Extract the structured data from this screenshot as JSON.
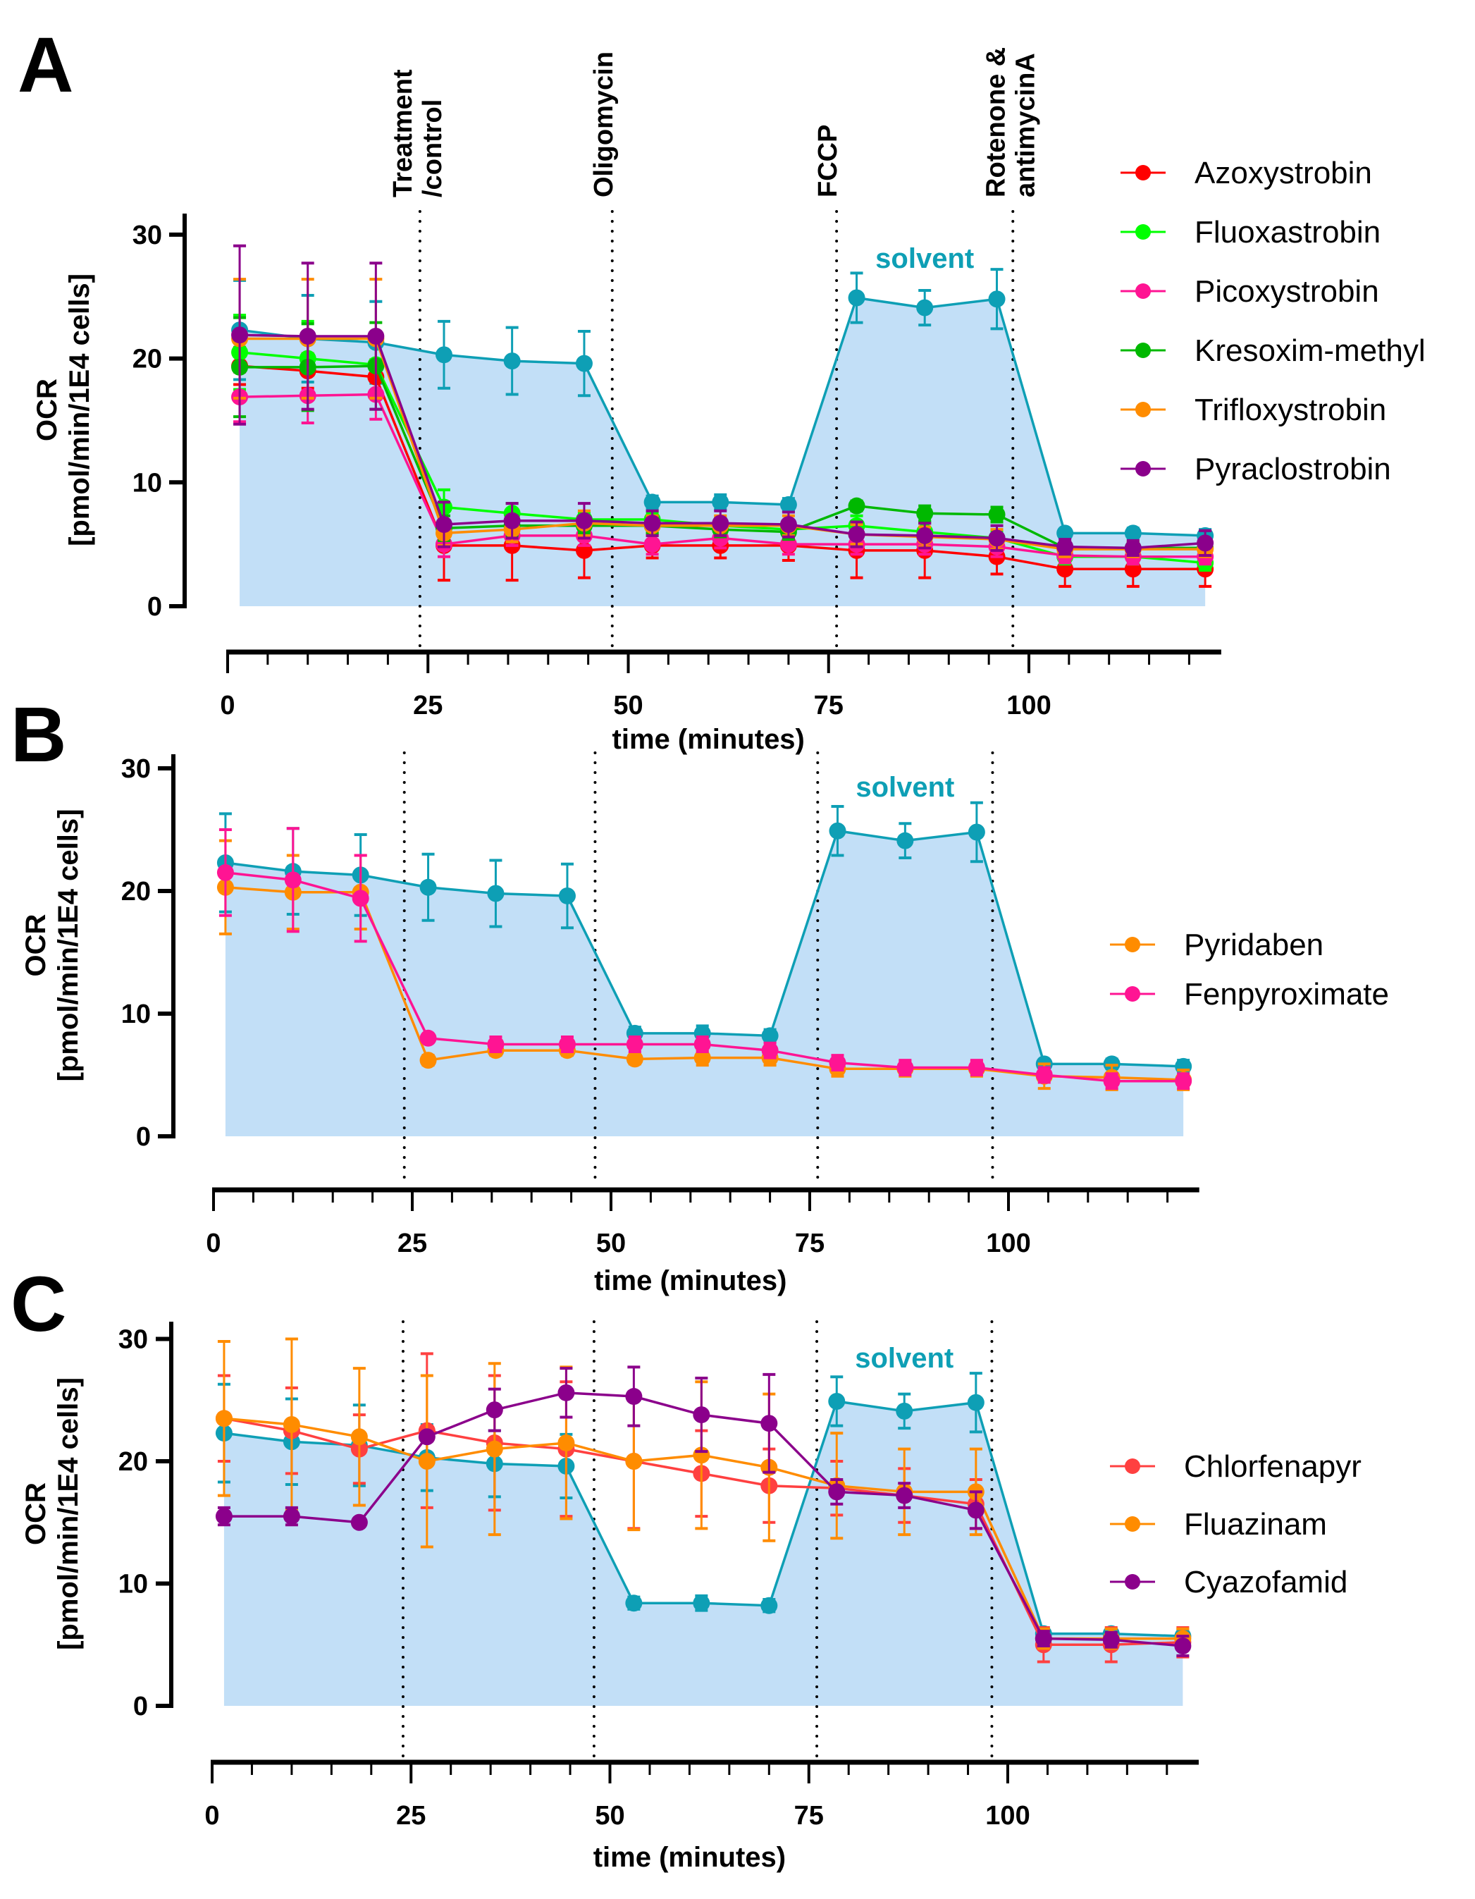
{
  "figure": {
    "ylabel_line1": "OCR",
    "ylabel_line2": "[pmol/min/1E4 cells]",
    "xlabel": "time (minutes)",
    "solvent_label": "solvent",
    "injections": [
      {
        "label_line1": "Treatment",
        "label_line2": "/control",
        "time": 24
      },
      {
        "label_line1": "Oligomycin",
        "label_line2": "",
        "time": 48
      },
      {
        "label_line1": "FCCP",
        "label_line2": "",
        "time": 76
      },
      {
        "label_line1": "Rotenone &",
        "label_line2": "antimycinA",
        "time": 98
      }
    ],
    "colors": {
      "solvent_line": "#0e9fb5",
      "solvent_fill": "#c2dff7",
      "axis": "#000000"
    }
  },
  "chart_data": [
    {
      "panel": "A",
      "type": "line",
      "xlabel": "time (minutes)",
      "ylabel": "OCR [pmol/min/1E4 cells]",
      "xlim": [
        0,
        124
      ],
      "ylim": [
        0,
        32
      ],
      "x_ticks": [
        0,
        25,
        50,
        75,
        100
      ],
      "y_ticks": [
        0,
        10,
        20,
        30
      ],
      "x": [
        1.5,
        10,
        18.5,
        27,
        35.5,
        44.5,
        53,
        61.5,
        70,
        78.5,
        87,
        96,
        104.5,
        113,
        122
      ],
      "legend_position": "right",
      "show_injection_labels": true,
      "solvent": {
        "name": "solvent",
        "color": "#0e9fb5",
        "values": [
          22.3,
          21.6,
          21.3,
          20.3,
          19.8,
          19.6,
          8.4,
          8.4,
          8.2,
          24.9,
          24.1,
          24.8,
          5.9,
          5.9,
          5.7
        ],
        "err": [
          4.0,
          3.5,
          3.3,
          2.7,
          2.7,
          2.6,
          0.5,
          0.6,
          0.5,
          2.0,
          1.4,
          2.4,
          0.3,
          0.4,
          0.5
        ]
      },
      "series": [
        {
          "name": "Azoxystrobin",
          "color": "#ff0000",
          "values": [
            19.4,
            19.0,
            18.5,
            4.9,
            4.9,
            4.5,
            4.9,
            4.9,
            4.9,
            4.5,
            4.5,
            4.0,
            3.0,
            3.0,
            3.0
          ],
          "err": [
            1.5,
            1.4,
            1.4,
            2.8,
            2.8,
            2.2,
            1.0,
            1.0,
            1.2,
            2.2,
            2.2,
            1.4,
            1.4,
            1.4,
            1.4
          ]
        },
        {
          "name": "Fluoxastrobin",
          "color": "#00ff00",
          "values": [
            20.5,
            20.0,
            19.5,
            8.0,
            7.5,
            7.0,
            7.0,
            6.5,
            6.2,
            6.5,
            6.0,
            5.5,
            4.0,
            4.0,
            3.5
          ],
          "err": [
            3.0,
            3.0,
            2.5,
            1.4,
            0.8,
            0.6,
            0.6,
            0.6,
            0.6,
            0.8,
            0.8,
            0.6,
            0.6,
            0.6,
            0.6
          ]
        },
        {
          "name": "Picoxystrobin",
          "color": "#ff1493",
          "values": [
            16.9,
            17.0,
            17.1,
            5.0,
            5.7,
            5.7,
            5.0,
            5.5,
            5.0,
            5.0,
            5.0,
            4.8,
            4.1,
            4.0,
            4.0
          ],
          "err": [
            2.0,
            2.2,
            2.0,
            1.0,
            0.8,
            0.8,
            0.8,
            0.8,
            0.8,
            0.8,
            0.8,
            0.8,
            0.6,
            0.6,
            0.6
          ]
        },
        {
          "name": "Kresoxim-methyl",
          "color": "#00b800",
          "values": [
            19.3,
            19.3,
            19.4,
            6.3,
            6.5,
            6.5,
            6.5,
            6.2,
            6.0,
            8.1,
            7.5,
            7.4,
            4.7,
            4.7,
            4.7
          ],
          "err": [
            4.0,
            3.5,
            3.5,
            1.0,
            0.8,
            0.6,
            0.6,
            0.6,
            0.6,
            0.4,
            0.6,
            0.6,
            0.4,
            0.4,
            0.4
          ]
        },
        {
          "name": "Trifloxystrobin",
          "color": "#ff8c00",
          "values": [
            21.6,
            21.6,
            21.6,
            5.9,
            6.2,
            6.7,
            6.5,
            6.5,
            6.5,
            5.8,
            5.6,
            5.4,
            4.6,
            4.6,
            4.6
          ],
          "err": [
            4.8,
            4.8,
            4.8,
            1.0,
            1.0,
            1.0,
            0.8,
            0.8,
            0.8,
            0.8,
            0.8,
            0.8,
            0.6,
            0.6,
            0.6
          ]
        },
        {
          "name": "Pyraclostrobin",
          "color": "#8b008b",
          "values": [
            21.9,
            21.8,
            21.8,
            6.6,
            6.9,
            6.9,
            6.7,
            6.7,
            6.6,
            5.8,
            5.7,
            5.5,
            4.8,
            4.7,
            5.1
          ],
          "err": [
            7.2,
            5.9,
            5.9,
            1.8,
            1.4,
            1.4,
            1.0,
            1.0,
            1.0,
            1.0,
            1.0,
            1.0,
            0.6,
            0.6,
            1.0
          ]
        }
      ]
    },
    {
      "panel": "B",
      "type": "line",
      "xlabel": "time (minutes)",
      "ylabel": "OCR [pmol/min/1E4 cells]",
      "xlim": [
        0,
        124
      ],
      "ylim": [
        0,
        32
      ],
      "x_ticks": [
        0,
        25,
        50,
        75,
        100
      ],
      "y_ticks": [
        0,
        10,
        20,
        30
      ],
      "x": [
        1.5,
        10,
        18.5,
        27,
        35.5,
        44.5,
        53,
        61.5,
        70,
        78.5,
        87,
        96,
        104.5,
        113,
        122
      ],
      "legend_position": "right",
      "show_injection_labels": false,
      "solvent": {
        "name": "solvent",
        "color": "#0e9fb5",
        "values": [
          22.3,
          21.6,
          21.3,
          20.3,
          19.8,
          19.6,
          8.4,
          8.4,
          8.2,
          24.9,
          24.1,
          24.8,
          5.9,
          5.9,
          5.7
        ],
        "err": [
          4.0,
          3.5,
          3.3,
          2.7,
          2.7,
          2.6,
          0.5,
          0.6,
          0.5,
          2.0,
          1.4,
          2.4,
          0.3,
          0.4,
          0.5
        ]
      },
      "series": [
        {
          "name": "Pyridaben",
          "color": "#ff8c00",
          "values": [
            20.3,
            19.9,
            19.9,
            6.2,
            7.0,
            7.0,
            6.3,
            6.4,
            6.4,
            5.5,
            5.5,
            5.5,
            4.9,
            4.8,
            4.6
          ],
          "err": [
            3.8,
            3.0,
            3.0,
            0.4,
            0.4,
            0.4,
            0.4,
            0.6,
            0.6,
            0.6,
            0.6,
            0.6,
            1.0,
            1.0,
            0.8
          ]
        },
        {
          "name": "Fenpyroximate",
          "color": "#ff1493",
          "values": [
            21.5,
            20.9,
            19.4,
            8.0,
            7.5,
            7.5,
            7.5,
            7.5,
            7.0,
            6.0,
            5.6,
            5.6,
            5.0,
            4.5,
            4.5
          ],
          "err": [
            3.5,
            4.2,
            3.5,
            0.3,
            0.6,
            0.6,
            0.6,
            0.6,
            0.6,
            0.6,
            0.6,
            0.6,
            0.6,
            0.6,
            0.6
          ]
        }
      ]
    },
    {
      "panel": "C",
      "type": "line",
      "xlabel": "time (minutes)",
      "ylabel": "OCR [pmol/min/1E4 cells]",
      "xlim": [
        0,
        124
      ],
      "ylim": [
        0,
        32
      ],
      "x_ticks": [
        0,
        25,
        50,
        75,
        100
      ],
      "y_ticks": [
        0,
        10,
        20,
        30
      ],
      "x": [
        1.5,
        10,
        18.5,
        27,
        35.5,
        44.5,
        53,
        61.5,
        70,
        78.5,
        87,
        96,
        104.5,
        113,
        122
      ],
      "legend_position": "right",
      "show_injection_labels": false,
      "solvent": {
        "name": "solvent",
        "color": "#0e9fb5",
        "values": [
          22.3,
          21.6,
          21.3,
          20.3,
          19.8,
          19.6,
          8.4,
          8.4,
          8.2,
          24.9,
          24.1,
          24.8,
          5.9,
          5.9,
          5.7
        ],
        "err": [
          4.0,
          3.5,
          3.3,
          2.7,
          2.7,
          2.6,
          0.5,
          0.6,
          0.5,
          2.0,
          1.4,
          2.4,
          0.3,
          0.4,
          0.5
        ]
      },
      "series": [
        {
          "name": "Chlorfenapyr",
          "color": "#ff4040",
          "values": [
            23.5,
            22.5,
            21.0,
            22.5,
            21.5,
            21.0,
            20.0,
            19.0,
            18.0,
            17.8,
            17.2,
            16.5,
            5.0,
            5.0,
            5.2
          ],
          "err": [
            3.5,
            3.5,
            2.8,
            6.3,
            5.5,
            5.5,
            5.5,
            3.5,
            3.0,
            2.2,
            2.2,
            2.0,
            1.4,
            1.4,
            1.2
          ]
        },
        {
          "name": "Fluazinam",
          "color": "#ff8c00",
          "values": [
            23.5,
            23.0,
            22.0,
            20.0,
            21.0,
            21.5,
            20.0,
            20.5,
            19.5,
            18.0,
            17.5,
            17.5,
            5.5,
            5.5,
            5.5
          ],
          "err": [
            6.3,
            7.0,
            5.6,
            7.0,
            7.0,
            6.2,
            5.6,
            6.0,
            6.0,
            4.3,
            3.5,
            3.5,
            0.8,
            0.8,
            0.8
          ]
        },
        {
          "name": "Cyazofamid",
          "color": "#8b008b",
          "values": [
            15.5,
            15.5,
            15.0,
            22.0,
            24.2,
            25.6,
            25.3,
            23.8,
            23.1,
            17.5,
            17.2,
            16.0,
            5.5,
            5.4,
            4.9
          ],
          "err": [
            0.7,
            0.7,
            0.3,
            0.3,
            1.7,
            2.0,
            2.4,
            3.0,
            4.0,
            1.0,
            1.0,
            1.5,
            0.6,
            0.6,
            0.8
          ]
        }
      ]
    }
  ]
}
